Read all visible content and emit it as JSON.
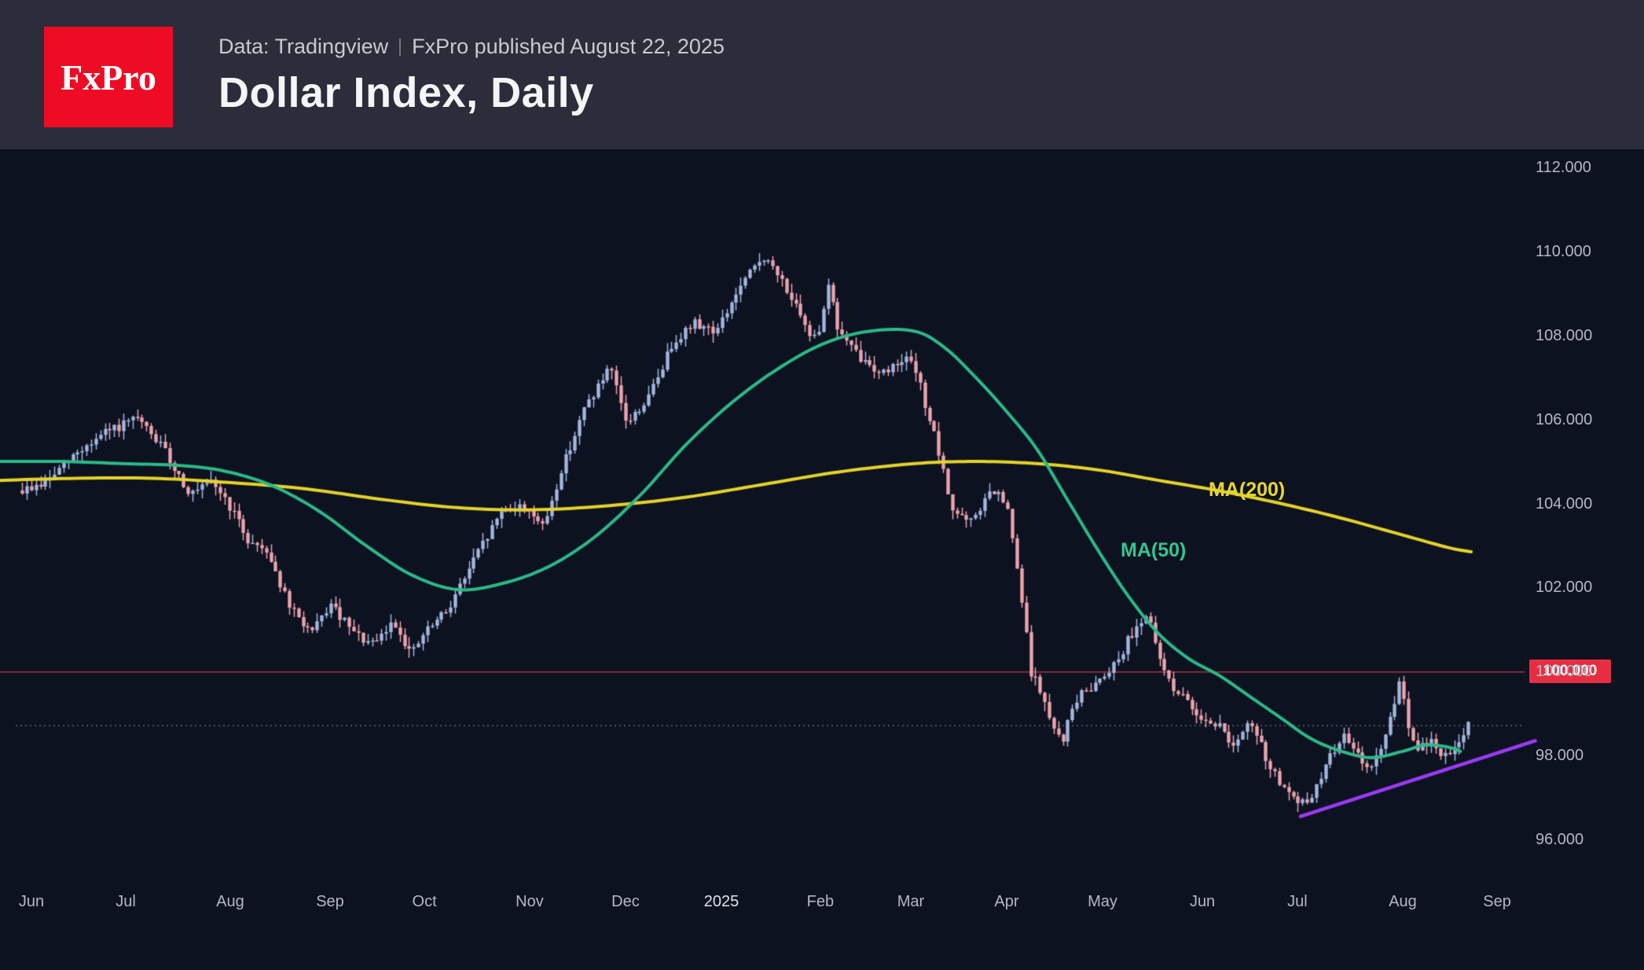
{
  "header": {
    "logo_text": "FxPro",
    "source_text": "Data: Tradingview",
    "published_text": "FxPro published August 22, 2025",
    "title": "Dollar Index, Daily"
  },
  "chart": {
    "ma200_label": "MA(200)",
    "ma50_label": "MA(50)",
    "level_tag_label": "100.000",
    "colors": {
      "header_bg": "#2b2d3a",
      "chart_bg": "#0d1220",
      "logo_red": "#ee0c24",
      "candle_up": "#a2b6de",
      "candle_down": "#eaa3ad",
      "ma50": "#2cb987",
      "ma200": "#e5d32b",
      "trendline": "#9b3bf2",
      "level_line": "#8e2f3a",
      "level_tag_bg": "#e62e42",
      "dotted_line": "#7e8699",
      "axis_text": "#b4b8c2",
      "year_text": "#e0e2e8"
    }
  },
  "chart_data": {
    "type": "candlestick",
    "title": "Dollar Index, Daily",
    "timeframe": "Daily",
    "source": "Data: Tradingview",
    "published": "August 22, 2025",
    "y_axis": {
      "min": 96,
      "max": 112,
      "tick_step": 2,
      "tick_values": [
        112,
        110,
        108,
        106,
        104,
        102,
        100,
        98,
        96
      ],
      "tick_labels": [
        "112.000",
        "110.000",
        "108.000",
        "106.000",
        "104.000",
        "102.000",
        "100.000",
        "98.000",
        "96.000"
      ]
    },
    "x_axis": {
      "month_labels": [
        "Jun",
        "Jul",
        "Aug",
        "Sep",
        "Oct",
        "Nov",
        "Dec",
        "2025",
        "Feb",
        "Mar",
        "Apr",
        "May",
        "Jun",
        "Jul",
        "Aug",
        "Sep"
      ],
      "month_pos": [
        0.0206,
        0.0825,
        0.151,
        0.2165,
        0.2784,
        0.3474,
        0.4103,
        0.4732,
        0.5381,
        0.5974,
        0.6603,
        0.7232,
        0.7887,
        0.851,
        0.9201,
        0.982
      ]
    },
    "levels": {
      "red_line_value": 100.0,
      "red_line_label": "100.000",
      "dotted_line_value": 98.72
    },
    "price_path": [
      [
        0.0,
        104.6
      ],
      [
        0.015,
        104.3
      ],
      [
        0.03,
        104.5
      ],
      [
        0.05,
        105.2
      ],
      [
        0.07,
        105.7
      ],
      [
        0.09,
        106.0
      ],
      [
        0.105,
        105.4
      ],
      [
        0.125,
        104.2
      ],
      [
        0.14,
        104.5
      ],
      [
        0.151,
        103.9
      ],
      [
        0.163,
        103.1
      ],
      [
        0.175,
        102.9
      ],
      [
        0.19,
        101.5
      ],
      [
        0.205,
        100.9
      ],
      [
        0.216,
        101.6
      ],
      [
        0.232,
        100.9
      ],
      [
        0.245,
        100.6
      ],
      [
        0.258,
        101.2
      ],
      [
        0.27,
        100.4
      ],
      [
        0.278,
        100.9
      ],
      [
        0.292,
        101.4
      ],
      [
        0.31,
        102.6
      ],
      [
        0.33,
        103.9
      ],
      [
        0.347,
        103.9
      ],
      [
        0.356,
        103.4
      ],
      [
        0.37,
        105.0
      ],
      [
        0.385,
        106.4
      ],
      [
        0.4,
        107.2
      ],
      [
        0.411,
        105.9
      ],
      [
        0.425,
        106.5
      ],
      [
        0.442,
        107.9
      ],
      [
        0.456,
        108.3
      ],
      [
        0.47,
        108.1
      ],
      [
        0.483,
        109.0
      ],
      [
        0.5,
        109.9
      ],
      [
        0.515,
        109.2
      ],
      [
        0.53,
        108.0
      ],
      [
        0.538,
        108.2
      ],
      [
        0.543,
        109.3
      ],
      [
        0.549,
        108.2
      ],
      [
        0.558,
        107.7
      ],
      [
        0.565,
        107.4
      ],
      [
        0.58,
        107.1
      ],
      [
        0.592,
        107.5
      ],
      [
        0.6,
        107.2
      ],
      [
        0.612,
        105.7
      ],
      [
        0.624,
        103.9
      ],
      [
        0.636,
        103.5
      ],
      [
        0.65,
        104.3
      ],
      [
        0.66,
        104.0
      ],
      [
        0.668,
        102.2
      ],
      [
        0.676,
        100.0
      ],
      [
        0.684,
        99.4
      ],
      [
        0.69,
        98.6
      ],
      [
        0.697,
        98.4
      ],
      [
        0.705,
        99.3
      ],
      [
        0.714,
        99.6
      ],
      [
        0.723,
        99.9
      ],
      [
        0.733,
        100.3
      ],
      [
        0.742,
        100.9
      ],
      [
        0.752,
        101.4
      ],
      [
        0.76,
        100.3
      ],
      [
        0.77,
        99.6
      ],
      [
        0.78,
        99.2
      ],
      [
        0.789,
        98.9
      ],
      [
        0.8,
        98.7
      ],
      [
        0.81,
        98.2
      ],
      [
        0.82,
        98.8
      ],
      [
        0.832,
        97.8
      ],
      [
        0.842,
        97.2
      ],
      [
        0.851,
        96.8
      ],
      [
        0.86,
        97.0
      ],
      [
        0.87,
        97.8
      ],
      [
        0.88,
        98.5
      ],
      [
        0.89,
        98.0
      ],
      [
        0.9,
        97.7
      ],
      [
        0.908,
        98.4
      ],
      [
        0.915,
        99.2
      ],
      [
        0.919,
        99.9
      ],
      [
        0.924,
        98.6
      ],
      [
        0.93,
        98.1
      ],
      [
        0.938,
        98.4
      ],
      [
        0.946,
        97.9
      ],
      [
        0.953,
        98.2
      ],
      [
        0.958,
        98.4
      ],
      [
        0.963,
        98.7
      ]
    ],
    "ma50_points": [
      [
        0.0,
        105.0
      ],
      [
        0.04,
        105.0
      ],
      [
        0.08,
        104.95
      ],
      [
        0.12,
        104.9
      ],
      [
        0.15,
        104.75
      ],
      [
        0.18,
        104.4
      ],
      [
        0.21,
        103.8
      ],
      [
        0.24,
        103.0
      ],
      [
        0.27,
        102.3
      ],
      [
        0.3,
        101.95
      ],
      [
        0.33,
        102.1
      ],
      [
        0.36,
        102.5
      ],
      [
        0.39,
        103.2
      ],
      [
        0.42,
        104.2
      ],
      [
        0.45,
        105.4
      ],
      [
        0.48,
        106.4
      ],
      [
        0.51,
        107.2
      ],
      [
        0.54,
        107.8
      ],
      [
        0.57,
        108.1
      ],
      [
        0.6,
        108.1
      ],
      [
        0.62,
        107.7
      ],
      [
        0.64,
        107.0
      ],
      [
        0.66,
        106.2
      ],
      [
        0.68,
        105.3
      ],
      [
        0.7,
        104.1
      ],
      [
        0.72,
        102.9
      ],
      [
        0.74,
        101.8
      ],
      [
        0.76,
        100.9
      ],
      [
        0.78,
        100.3
      ],
      [
        0.8,
        99.9
      ],
      [
        0.82,
        99.4
      ],
      [
        0.84,
        98.9
      ],
      [
        0.86,
        98.4
      ],
      [
        0.88,
        98.1
      ],
      [
        0.9,
        97.95
      ],
      [
        0.92,
        98.1
      ],
      [
        0.935,
        98.25
      ],
      [
        0.95,
        98.2
      ],
      [
        0.958,
        98.1
      ]
    ],
    "ma200_points": [
      [
        0.0,
        104.55
      ],
      [
        0.05,
        104.6
      ],
      [
        0.1,
        104.6
      ],
      [
        0.15,
        104.5
      ],
      [
        0.2,
        104.35
      ],
      [
        0.25,
        104.1
      ],
      [
        0.3,
        103.9
      ],
      [
        0.35,
        103.85
      ],
      [
        0.4,
        103.95
      ],
      [
        0.45,
        104.15
      ],
      [
        0.5,
        104.45
      ],
      [
        0.55,
        104.75
      ],
      [
        0.6,
        104.95
      ],
      [
        0.64,
        105.0
      ],
      [
        0.68,
        104.95
      ],
      [
        0.72,
        104.8
      ],
      [
        0.76,
        104.55
      ],
      [
        0.8,
        104.3
      ],
      [
        0.84,
        104.0
      ],
      [
        0.88,
        103.65
      ],
      [
        0.92,
        103.25
      ],
      [
        0.95,
        102.95
      ],
      [
        0.965,
        102.85
      ]
    ],
    "trendline": {
      "from": [
        0.853,
        96.55
      ],
      "to": [
        1.007,
        98.35
      ]
    },
    "candles": {
      "count": 315,
      "t_start": 0.0145,
      "t_end": 0.963,
      "seed": 9,
      "close_noise": 0.24,
      "wick_noise": 0.22
    }
  }
}
